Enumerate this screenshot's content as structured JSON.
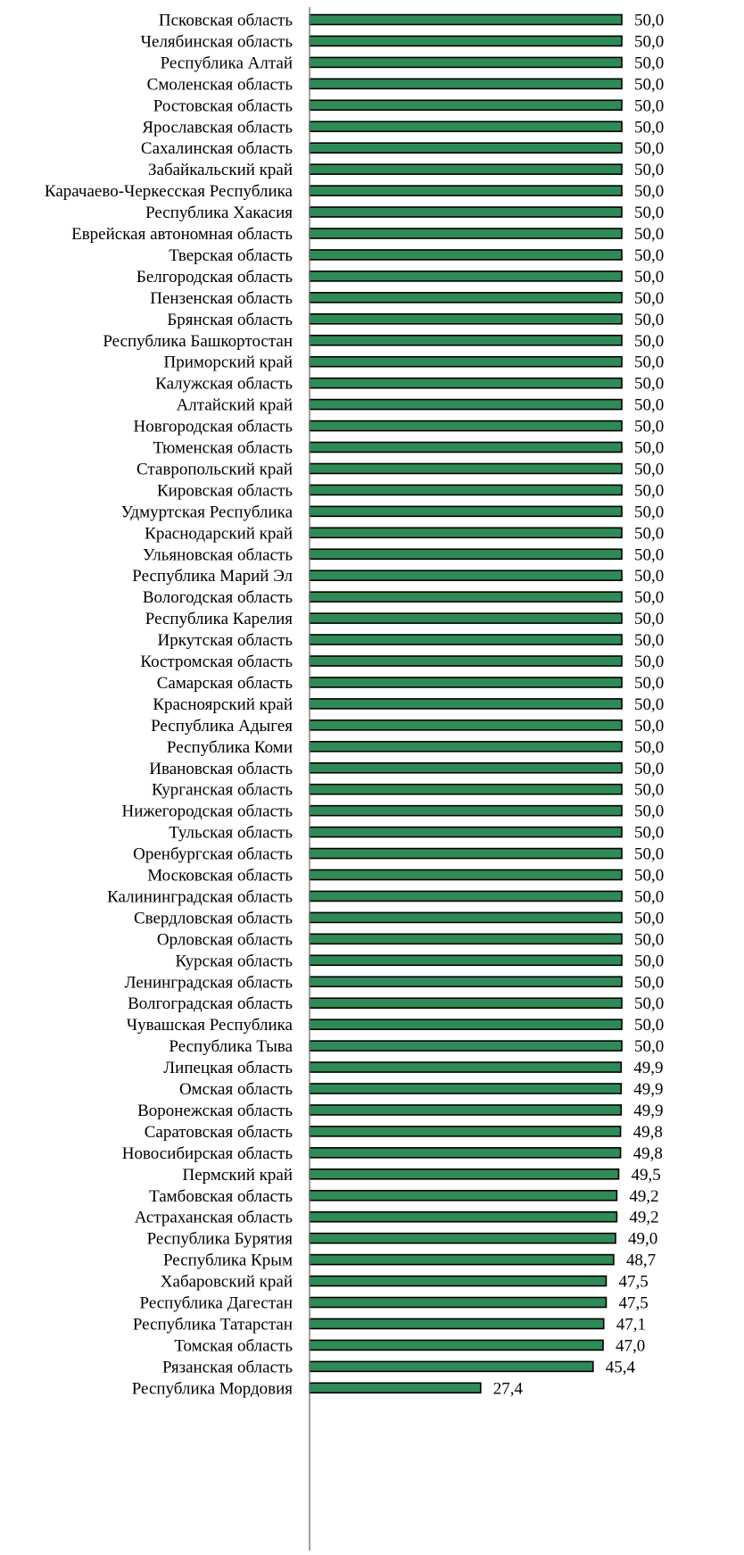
{
  "colors": {
    "bar_fill": "#2e8b57",
    "bar_stroke": "#000000",
    "axis": "#808080",
    "text": "#000000"
  },
  "chart_data": {
    "type": "bar",
    "orientation": "horizontal",
    "title": "",
    "xlabel": "",
    "ylabel": "",
    "xlim": [
      0,
      50
    ],
    "grid": false,
    "legend": "none",
    "categories": [
      "Псковская область",
      "Челябинская область",
      "Республика Алтай",
      "Смоленская область",
      "Ростовская область",
      "Ярославская область",
      "Сахалинская область",
      "Забайкальский край",
      "Карачаево-Черкесская Республика",
      "Республика Хакасия",
      "Еврейская автономная область",
      "Тверская область",
      "Белгородская область",
      "Пензенская область",
      "Брянская область",
      "Республика Башкортостан",
      "Приморский край",
      "Калужская область",
      "Алтайский край",
      "Новгородская область",
      "Тюменская область",
      "Ставропольский край",
      "Кировская область",
      "Удмуртская Республика",
      "Краснодарский край",
      "Ульяновская область",
      "Республика Марий Эл",
      "Вологодская область",
      "Республика Карелия",
      "Иркутская область",
      "Костромская область",
      "Самарская область",
      "Красноярский край",
      "Республика Адыгея",
      "Республика Коми",
      "Ивановская область",
      "Курганская область",
      "Нижегородская область",
      "Тульская область",
      "Оренбургская область",
      "Московская область",
      "Калининградская область",
      "Свердловская область",
      "Орловская область",
      "Курская область",
      "Ленинградская область",
      "Волгоградская область",
      "Чувашская Республика",
      "Республика Тыва",
      "Липецкая область",
      "Омская область",
      "Воронежская область",
      "Саратовская область",
      "Новосибирская область",
      "Пермский край",
      "Тамбовская область",
      "Астраханская область",
      "Республика Бурятия",
      "Республика Крым",
      "Хабаровский край",
      "Республика Дагестан",
      "Республика Татарстан",
      "Томская область",
      "Рязанская область",
      "Республика Мордовия"
    ],
    "values": [
      50.0,
      50.0,
      50.0,
      50.0,
      50.0,
      50.0,
      50.0,
      50.0,
      50.0,
      50.0,
      50.0,
      50.0,
      50.0,
      50.0,
      50.0,
      50.0,
      50.0,
      50.0,
      50.0,
      50.0,
      50.0,
      50.0,
      50.0,
      50.0,
      50.0,
      50.0,
      50.0,
      50.0,
      50.0,
      50.0,
      50.0,
      50.0,
      50.0,
      50.0,
      50.0,
      50.0,
      50.0,
      50.0,
      50.0,
      50.0,
      50.0,
      50.0,
      50.0,
      50.0,
      50.0,
      50.0,
      50.0,
      50.0,
      50.0,
      49.9,
      49.9,
      49.9,
      49.8,
      49.8,
      49.5,
      49.2,
      49.2,
      49.0,
      48.7,
      47.5,
      47.5,
      47.1,
      47.0,
      45.4,
      27.4
    ],
    "value_labels": [
      "50,0",
      "50,0",
      "50,0",
      "50,0",
      "50,0",
      "50,0",
      "50,0",
      "50,0",
      "50,0",
      "50,0",
      "50,0",
      "50,0",
      "50,0",
      "50,0",
      "50,0",
      "50,0",
      "50,0",
      "50,0",
      "50,0",
      "50,0",
      "50,0",
      "50,0",
      "50,0",
      "50,0",
      "50,0",
      "50,0",
      "50,0",
      "50,0",
      "50,0",
      "50,0",
      "50,0",
      "50,0",
      "50,0",
      "50,0",
      "50,0",
      "50,0",
      "50,0",
      "50,0",
      "50,0",
      "50,0",
      "50,0",
      "50,0",
      "50,0",
      "50,0",
      "50,0",
      "50,0",
      "50,0",
      "50,0",
      "50,0",
      "49,9",
      "49,9",
      "49,9",
      "49,8",
      "49,8",
      "49,5",
      "49,2",
      "49,2",
      "49,0",
      "48,7",
      "47,5",
      "47,5",
      "47,1",
      "47,0",
      "45,4",
      "27,4"
    ]
  }
}
